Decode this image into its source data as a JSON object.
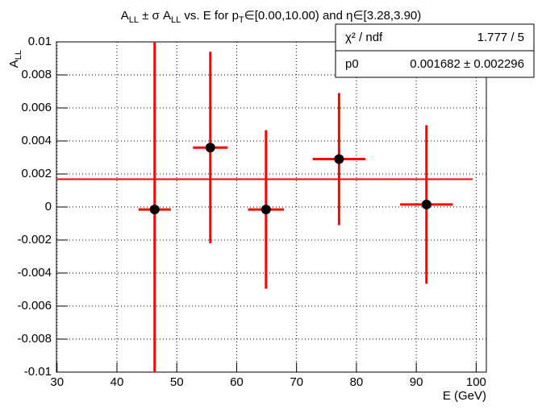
{
  "chart_data": {
    "type": "errorbar",
    "title": [
      {
        "text": "A"
      },
      {
        "text": "LL",
        "sub": true
      },
      {
        "text": " ± σ A"
      },
      {
        "text": "LL",
        "sub": true
      },
      {
        "text": " vs. E for p"
      },
      {
        "text": "T",
        "sub": true
      },
      {
        "text": "∈[0.00,10.00) and η∈[3.28,3.90)"
      }
    ],
    "y_label": [
      {
        "text": "A"
      },
      {
        "text": "LL",
        "sub": true
      }
    ],
    "x_label": "E (GeV)",
    "x": [
      46.3,
      55.6,
      64.9,
      77.1,
      91.7
    ],
    "xerr": [
      2.7,
      2.9,
      3.0,
      4.4,
      4.4
    ],
    "values": [
      -0.00015,
      0.0036,
      -0.00015,
      0.0029,
      0.00015
    ],
    "errors": [
      0.0104,
      0.0058,
      0.0048,
      0.004,
      0.0048
    ],
    "marker_color": "#000000",
    "color": "#ff0000",
    "fit": {
      "value": 0.001682,
      "xrange": [
        30,
        99.4
      ],
      "color": "#ff0000"
    },
    "stats": [
      [
        "χ² / ndf",
        "1.777 / 5"
      ],
      [
        "p0",
        "0.001682 ± 0.002296"
      ]
    ],
    "xlim": [
      29.9,
      101.7
    ],
    "ylim": [
      -0.01,
      0.01
    ],
    "xticks": [
      30,
      40,
      50,
      60,
      70,
      80,
      90,
      100
    ],
    "yticks": [
      -0.01,
      -0.008,
      -0.006,
      -0.004,
      -0.002,
      0,
      0.002,
      0.004,
      0.006,
      0.008,
      0.01
    ],
    "grid": true
  }
}
